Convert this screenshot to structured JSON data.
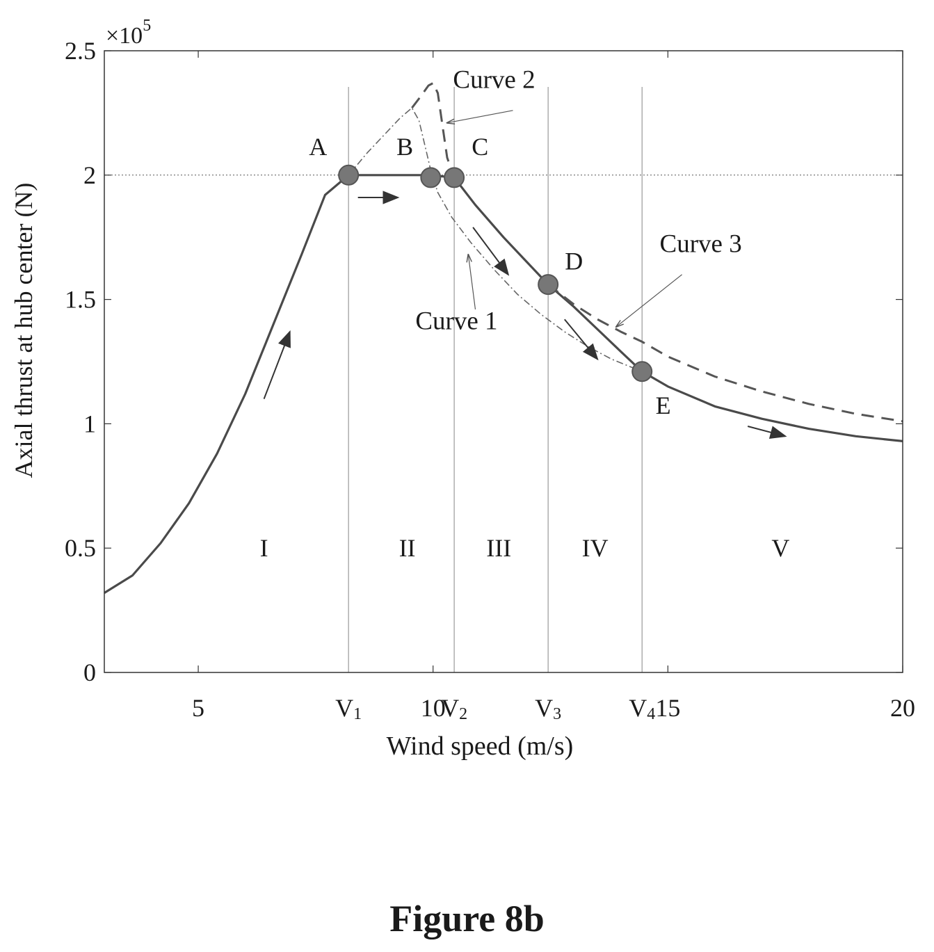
{
  "figure_caption": "Figure 8b",
  "chart_data": {
    "type": "line",
    "title": "",
    "xlabel": "Wind speed (m/s)",
    "ylabel": "Axial thrust at hub center (N)",
    "y_multiplier_label": "×10",
    "y_multiplier_exp": "5",
    "xlim": [
      3,
      20
    ],
    "ylim": [
      0,
      2.5
    ],
    "grid": false,
    "reference_line_y": 2,
    "x_ticks": [
      {
        "value": 5,
        "label": "5"
      },
      {
        "value": 10,
        "label": "10"
      },
      {
        "value": 15,
        "label": "15"
      },
      {
        "value": 20,
        "label": "20"
      }
    ],
    "y_ticks": [
      {
        "value": 0,
        "label": "0"
      },
      {
        "value": 0.5,
        "label": "0.5"
      },
      {
        "value": 1,
        "label": "1"
      },
      {
        "value": 1.5,
        "label": "1.5"
      },
      {
        "value": 2,
        "label": "2"
      },
      {
        "value": 2.5,
        "label": "2.5"
      }
    ],
    "v_lines": [
      {
        "value": 8.2,
        "label": "V",
        "sub": "1"
      },
      {
        "value": 10.45,
        "label": "V",
        "sub": "2"
      },
      {
        "value": 12.45,
        "label": "V",
        "sub": "3"
      },
      {
        "value": 14.45,
        "label": "V",
        "sub": "4"
      }
    ],
    "regions": [
      {
        "label": "I",
        "x": 6.4,
        "y": 0.5
      },
      {
        "label": "II",
        "x": 9.45,
        "y": 0.5
      },
      {
        "label": "III",
        "x": 11.4,
        "y": 0.5
      },
      {
        "label": "IV",
        "x": 13.45,
        "y": 0.5
      },
      {
        "label": "V",
        "x": 17.4,
        "y": 0.5
      }
    ],
    "points": [
      {
        "label": "A",
        "x": 8.2,
        "y": 2.0,
        "lx": 7.55,
        "ly": 2.08
      },
      {
        "label": "B",
        "x": 9.95,
        "y": 1.99,
        "lx": 9.4,
        "ly": 2.08
      },
      {
        "label": "C",
        "x": 10.45,
        "y": 1.99,
        "lx": 11.0,
        "ly": 2.08
      },
      {
        "label": "D",
        "x": 12.45,
        "y": 1.56,
        "lx": 13.0,
        "ly": 1.62
      },
      {
        "label": "E",
        "x": 14.45,
        "y": 1.21,
        "lx": 14.9,
        "ly": 1.04
      }
    ],
    "series": [
      {
        "style": "solid",
        "x": [
          3,
          3.6,
          4.2,
          4.8,
          5.4,
          6.0,
          6.6,
          7.2,
          7.7,
          8.2,
          9.0,
          9.95,
          10.45,
          10.9,
          11.5,
          12.0,
          12.45,
          13.0,
          13.5,
          14.0,
          14.45,
          15.0,
          16.0,
          17.0,
          18.0,
          19.0,
          20.0
        ],
        "y": [
          0.32,
          0.39,
          0.52,
          0.68,
          0.88,
          1.12,
          1.4,
          1.68,
          1.92,
          2.0,
          2.0,
          2.0,
          1.99,
          1.88,
          1.75,
          1.65,
          1.56,
          1.47,
          1.38,
          1.29,
          1.21,
          1.15,
          1.07,
          1.02,
          0.98,
          0.95,
          0.93
        ]
      },
      {
        "style": "dashdot",
        "x": [
          8.2,
          8.6,
          9.0,
          9.3,
          9.55,
          9.7,
          9.85,
          9.95,
          10.1,
          10.4,
          10.8,
          11.3,
          11.8,
          12.3,
          12.8,
          13.3,
          13.8,
          14.45
        ],
        "y": [
          2.0,
          2.09,
          2.17,
          2.23,
          2.27,
          2.22,
          2.1,
          2.02,
          1.93,
          1.83,
          1.73,
          1.62,
          1.52,
          1.44,
          1.37,
          1.31,
          1.26,
          1.21
        ]
      },
      {
        "style": "dashed",
        "x": [
          9.55,
          9.75,
          9.9,
          10.0,
          10.1,
          10.2,
          10.3,
          10.45
        ],
        "y": [
          2.27,
          2.32,
          2.36,
          2.37,
          2.33,
          2.2,
          2.07,
          1.99
        ]
      },
      {
        "style": "dashed",
        "x": [
          12.45,
          13.0,
          13.5,
          14.0,
          14.45,
          15.0,
          16.0,
          17.0,
          18.0,
          19.0,
          20.0
        ],
        "y": [
          1.56,
          1.48,
          1.42,
          1.37,
          1.33,
          1.27,
          1.19,
          1.13,
          1.08,
          1.04,
          1.01
        ]
      }
    ],
    "curve_labels": [
      {
        "label": "Curve 2",
        "tx": 11.3,
        "ty": 2.35,
        "ax": 11.7,
        "ay": 2.26,
        "bx": 10.3,
        "by": 2.21
      },
      {
        "label": "Curve 1",
        "tx": 10.5,
        "ty": 1.38,
        "ax": 10.9,
        "ay": 1.46,
        "bx": 10.75,
        "by": 1.68
      },
      {
        "label": "Curve 3",
        "tx": 15.7,
        "ty": 1.69,
        "ax": 15.3,
        "ay": 1.6,
        "bx": 13.9,
        "by": 1.39
      }
    ],
    "direction_arrows": [
      {
        "x1": 6.4,
        "y1": 1.1,
        "x2": 6.95,
        "y2": 1.37
      },
      {
        "x1": 8.4,
        "y1": 1.91,
        "x2": 9.25,
        "y2": 1.91
      },
      {
        "x1": 10.85,
        "y1": 1.79,
        "x2": 11.6,
        "y2": 1.6
      },
      {
        "x1": 12.8,
        "y1": 1.42,
        "x2": 13.5,
        "y2": 1.26
      },
      {
        "x1": 16.7,
        "y1": 0.99,
        "x2": 17.5,
        "y2": 0.95
      }
    ]
  }
}
